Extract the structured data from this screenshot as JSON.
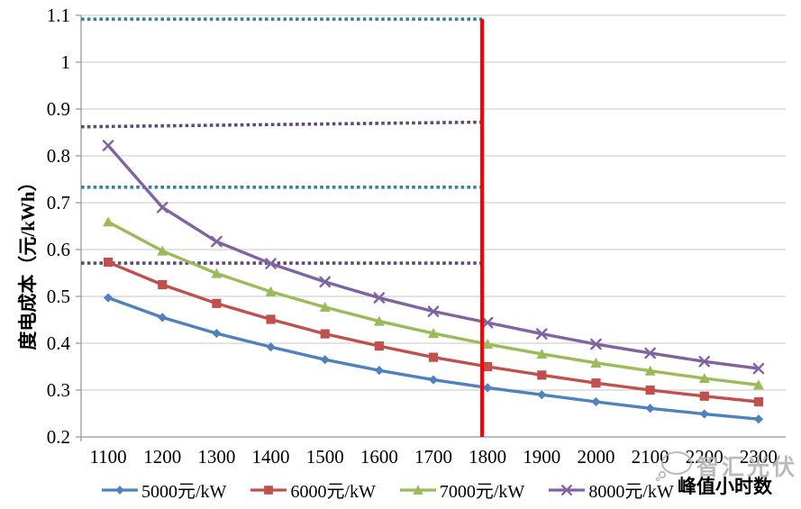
{
  "chart_data": {
    "type": "line",
    "title": "",
    "xlabel": "峰值小时数",
    "ylabel": "度电成本（元/kWh）",
    "x_categories": [
      1100,
      1200,
      1300,
      1400,
      1500,
      1600,
      1700,
      1800,
      1900,
      2000,
      2100,
      2200,
      2300
    ],
    "ylim": [
      0.2,
      1.1
    ],
    "y_ticks": [
      {
        "label": "0.2",
        "value": 0.2
      },
      {
        "label": "0.3",
        "value": 0.3
      },
      {
        "label": "0.4",
        "value": 0.4
      },
      {
        "label": "0.5",
        "value": 0.5
      },
      {
        "label": "0.6",
        "value": 0.6
      },
      {
        "label": "0.7",
        "value": 0.7
      },
      {
        "label": "0.8",
        "value": 0.8
      },
      {
        "label": "0.9",
        "value": 0.9
      },
      {
        "label": "1",
        "value": 1.0
      },
      {
        "label": "1.1",
        "value": 1.1
      }
    ],
    "grid": "horizontal",
    "legend_position": "bottom",
    "series": [
      {
        "name": "5000元/kW",
        "color": "#4F81BD",
        "marker": "diamond",
        "values": [
          0.497,
          0.455,
          0.421,
          0.392,
          0.365,
          0.342,
          0.322,
          0.305,
          0.29,
          0.275,
          0.261,
          0.249,
          0.238
        ]
      },
      {
        "name": "6000元/kW",
        "color": "#C0504D",
        "marker": "square",
        "values": [
          0.573,
          0.525,
          0.485,
          0.451,
          0.42,
          0.394,
          0.37,
          0.35,
          0.332,
          0.315,
          0.3,
          0.287,
          0.275
        ]
      },
      {
        "name": "7000元/kW",
        "color": "#9BBB59",
        "marker": "triangle",
        "values": [
          0.659,
          0.597,
          0.549,
          0.51,
          0.477,
          0.447,
          0.421,
          0.398,
          0.377,
          0.358,
          0.341,
          0.325,
          0.311
        ]
      },
      {
        "name": "8000元/kW",
        "color": "#8064A2",
        "marker": "x",
        "values": [
          0.822,
          0.69,
          0.617,
          0.57,
          0.531,
          0.497,
          0.468,
          0.444,
          0.42,
          0.398,
          0.379,
          0.361,
          0.346
        ]
      }
    ],
    "reference_lines": [
      {
        "y_start": 1.092,
        "y_end": 1.092,
        "color": "#31849B",
        "style": "dotted"
      },
      {
        "y_start": 0.862,
        "y_end": 0.872,
        "color": "#5F497A",
        "style": "dotted"
      },
      {
        "y_start": 0.733,
        "y_end": 0.733,
        "color": "#31849B",
        "style": "dotted"
      },
      {
        "y_start": 0.571,
        "y_end": 0.571,
        "color": "#5F497A",
        "style": "dotted"
      }
    ],
    "vertical_line": {
      "x": 1790,
      "y_start": 0.2,
      "y_end": 1.092,
      "color": "#FF0000"
    },
    "watermark": {
      "text": "智汇光伏"
    }
  }
}
